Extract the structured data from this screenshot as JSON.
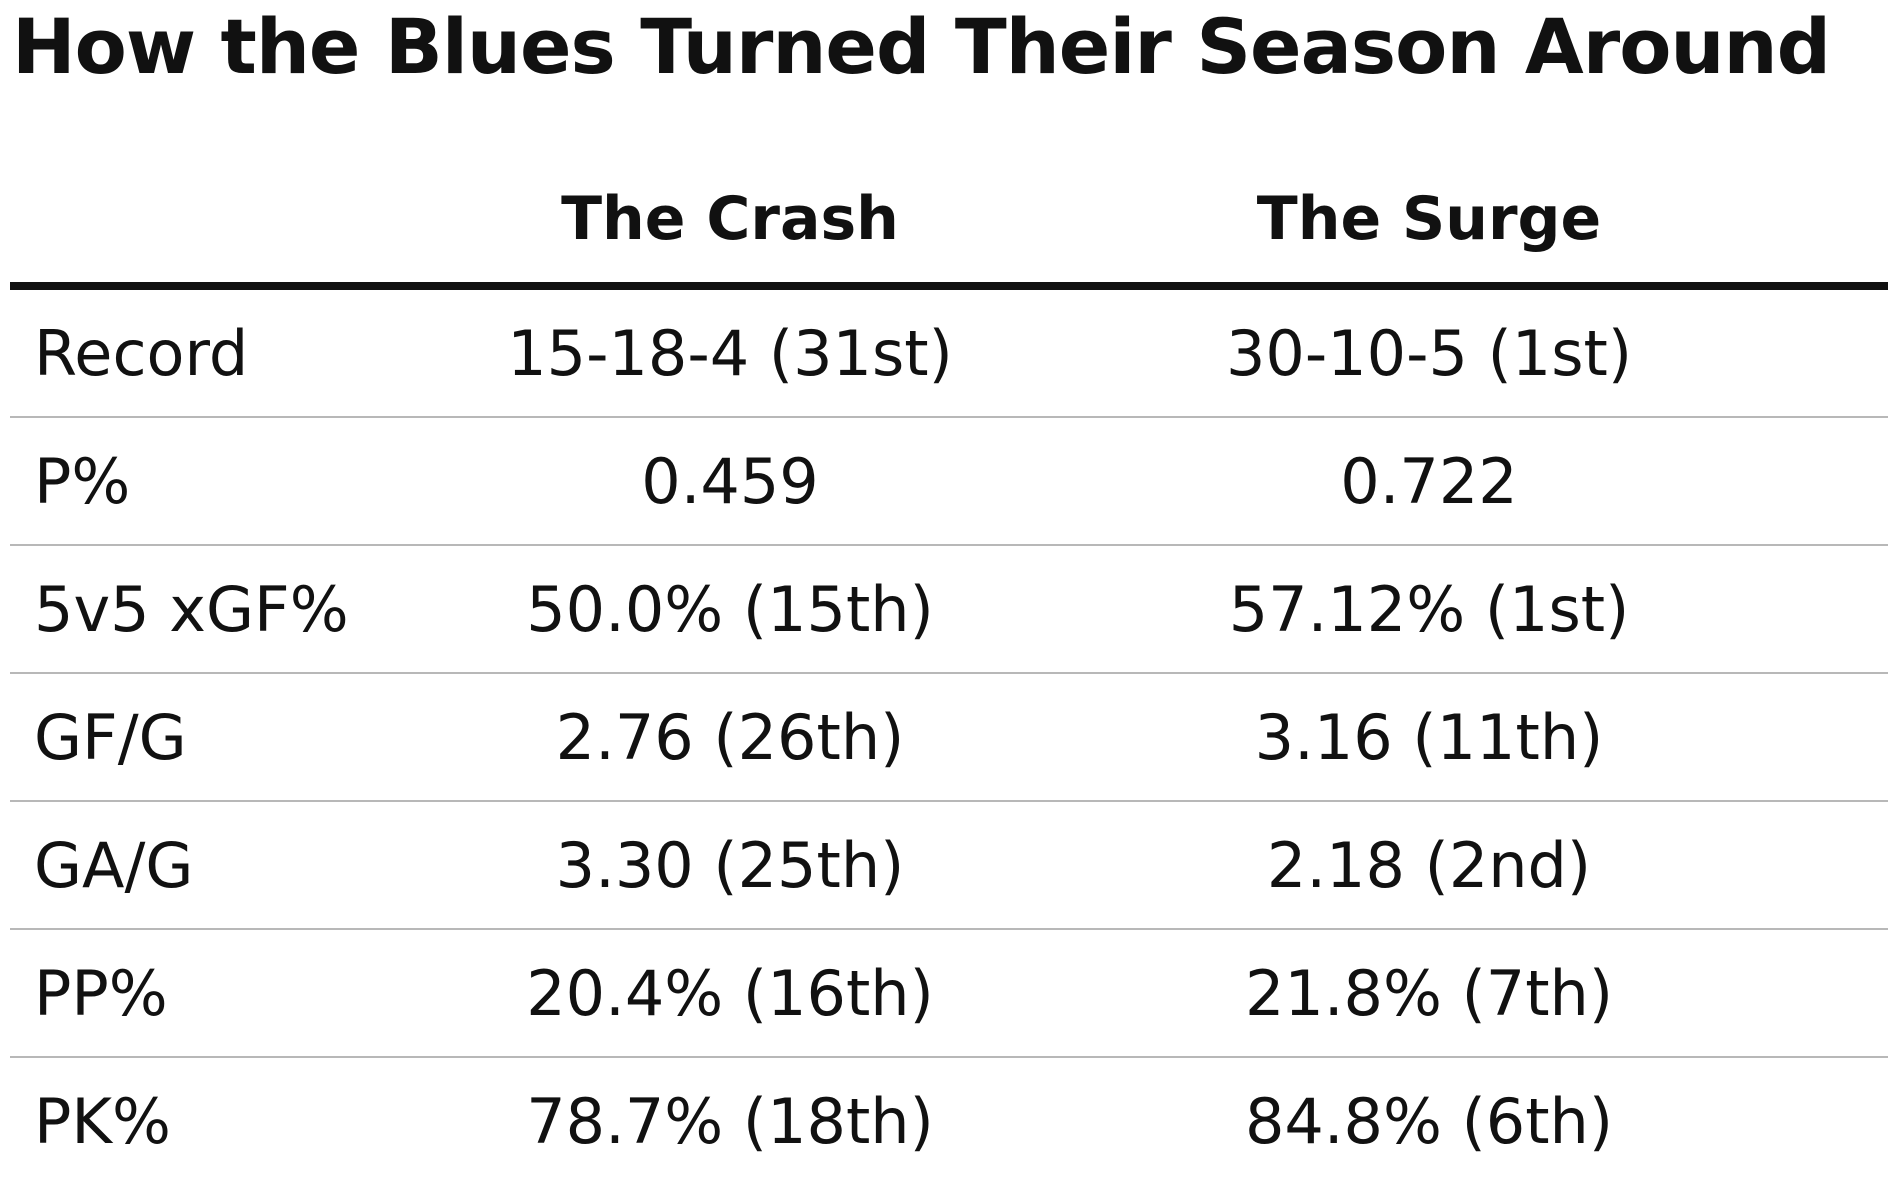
{
  "title": "How the Blues Turned Their Season Around",
  "table": {
    "headers": [
      "",
      "The Crash",
      "The Surge"
    ],
    "rows": [
      {
        "metric": "Record",
        "crash": "15-18-4 (31st)",
        "surge": "30-10-5 (1st)"
      },
      {
        "metric": "P%",
        "crash": "0.459",
        "surge": "0.722"
      },
      {
        "metric": "5v5 xGF%",
        "crash": "50.0% (15th)",
        "surge": "57.12% (1st)"
      },
      {
        "metric": "GF/G",
        "crash": "2.76 (26th)",
        "surge": "3.16 (11th)"
      },
      {
        "metric": "GA/G",
        "crash": "3.30 (25th)",
        "surge": "2.18 (2nd)"
      },
      {
        "metric": "PP%",
        "crash": "20.4% (16th)",
        "surge": "21.8% (7th)"
      },
      {
        "metric": "PK%",
        "crash": "78.7% (18th)",
        "surge": "84.8% (6th)"
      }
    ]
  },
  "colors": {
    "text": "#111111",
    "header_rule": "#111111",
    "row_divider": "#b8b8b8",
    "background": "#ffffff"
  }
}
